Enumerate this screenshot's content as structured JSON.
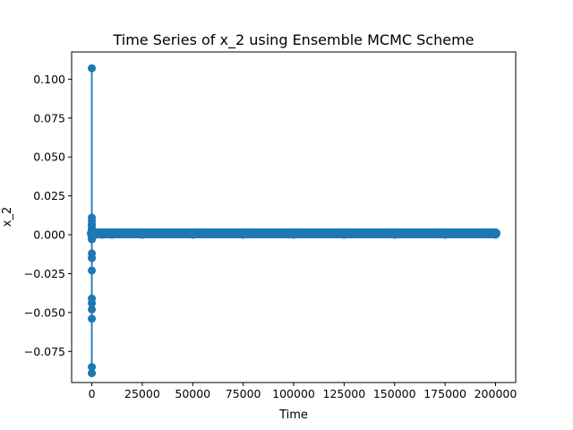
{
  "chart_data": {
    "type": "line",
    "title": "Time Series of x_2 using Ensemble MCMC Scheme",
    "xlabel": "Time",
    "ylabel": "x_2",
    "xlim": [
      -10000,
      210000
    ],
    "ylim": [
      -0.095,
      0.1175
    ],
    "x_ticks": [
      0,
      25000,
      50000,
      75000,
      100000,
      125000,
      150000,
      175000,
      200000
    ],
    "x_tick_labels": [
      "0",
      "25000",
      "50000",
      "75000",
      "100000",
      "125000",
      "150000",
      "175000",
      "200000"
    ],
    "y_ticks": [
      -0.075,
      -0.05,
      -0.025,
      0.0,
      0.025,
      0.05,
      0.075,
      0.1
    ],
    "y_tick_labels": [
      "−0.075",
      "−0.050",
      "−0.025",
      "0.000",
      "0.025",
      "0.050",
      "0.075",
      "0.100"
    ],
    "grid": false,
    "legend": "none",
    "marker": "circle",
    "color": "#1f77b4",
    "series": [
      {
        "x": [
          0,
          1,
          2,
          3,
          4,
          5,
          6,
          7,
          8,
          9,
          10,
          11,
          12,
          13,
          14,
          15,
          16,
          17,
          18,
          19,
          20,
          25,
          30,
          40,
          50,
          100,
          200,
          500,
          1000,
          2000,
          5000,
          10000,
          25000,
          50000,
          75000,
          100000,
          125000,
          150000,
          175000,
          200000
        ],
        "y": [
          0.107,
          -0.089,
          0.011,
          -0.085,
          0.006,
          -0.054,
          0.004,
          -0.048,
          -0.002,
          -0.044,
          0.009,
          -0.041,
          -0.023,
          0.003,
          -0.015,
          -0.012,
          0.007,
          -0.003,
          0.002,
          -0.001,
          0.001,
          0.0005,
          -0.0004,
          0.0003,
          0.0,
          0.0002,
          0.0,
          0.0001,
          0.0,
          0.0,
          0.0,
          0.0,
          0.0,
          0.0,
          0.0,
          0.0,
          0.0,
          0.0,
          0.0,
          0.0
        ]
      }
    ]
  }
}
